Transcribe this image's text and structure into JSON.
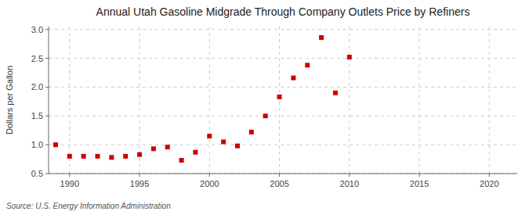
{
  "chart_data": {
    "type": "scatter",
    "title": "Annual Utah Gasoline Midgrade Through Company Outlets Price by Refiners",
    "ylabel": "Dollars per Gallon",
    "annotation": "Source: U.S. Energy Information Administration",
    "x": [
      1989,
      1990,
      1991,
      1992,
      1993,
      1994,
      1995,
      1996,
      1997,
      1998,
      1999,
      2000,
      2001,
      2002,
      2003,
      2004,
      2005,
      2006,
      2007,
      2008,
      2009,
      2010
    ],
    "values": [
      1.0,
      0.8,
      0.8,
      0.8,
      0.78,
      0.8,
      0.83,
      0.93,
      0.96,
      0.73,
      0.87,
      1.15,
      1.05,
      0.98,
      1.22,
      1.5,
      1.83,
      2.16,
      2.38,
      2.86,
      1.9,
      2.52
    ],
    "color": "#cc0000",
    "marker": "square",
    "xlim": [
      1988.5,
      2022
    ],
    "ylim": [
      0.5,
      3.05
    ],
    "xticks": [
      1990,
      1995,
      2000,
      2005,
      2010,
      2015,
      2020
    ],
    "yticks": [
      0.5,
      {
        "value": 1.0,
        "label": "1.0"
      },
      1.5,
      {
        "value": 2.0,
        "label": "2.0"
      },
      2.5,
      {
        "value": 3.0,
        "label": "3.0"
      }
    ],
    "grid": true
  }
}
